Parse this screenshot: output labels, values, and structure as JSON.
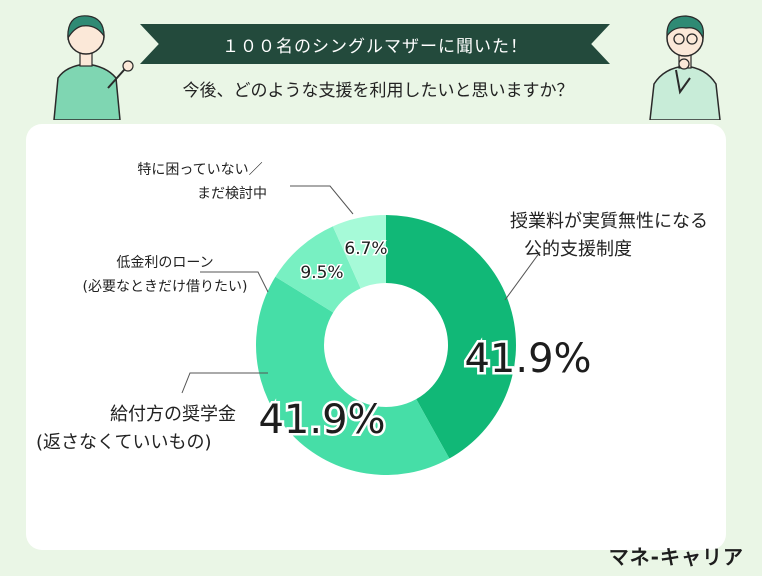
{
  "header": {
    "banner": "１００名のシングルマザーに聞いた！",
    "question": "今後、どのような支援を利用したいと思いますか？"
  },
  "brand": "マネ-キャリア",
  "colors": {
    "background": "#eaf6e6",
    "banner": "#234a3c",
    "slice1": "#11b877",
    "slice2": "#46dea7",
    "slice3": "#78f0c2",
    "slice4": "#a6fad8"
  },
  "chart_data": {
    "type": "pie",
    "donut": true,
    "categories": [
      "授業料が実質無性になる公的支援制度",
      "給付方の奨学金(返さなくていいもの)",
      "低金利のローン(必要なときだけ借りたい)",
      "特に困っていない／まだ検討中"
    ],
    "values": [
      41.9,
      41.9,
      9.5,
      6.7
    ],
    "value_labels": [
      "41.9%",
      "41.9%",
      "9.5%",
      "6.7%"
    ],
    "callouts": [
      [
        "授業料が実質無性になる",
        "公的支援制度"
      ],
      [
        "給付方の奨学金",
        "(返さなくていいもの)"
      ],
      [
        "低金利のローン",
        "(必要なときだけ借りたい)"
      ],
      [
        "特に困っていない／",
        "まだ検討中"
      ]
    ]
  }
}
